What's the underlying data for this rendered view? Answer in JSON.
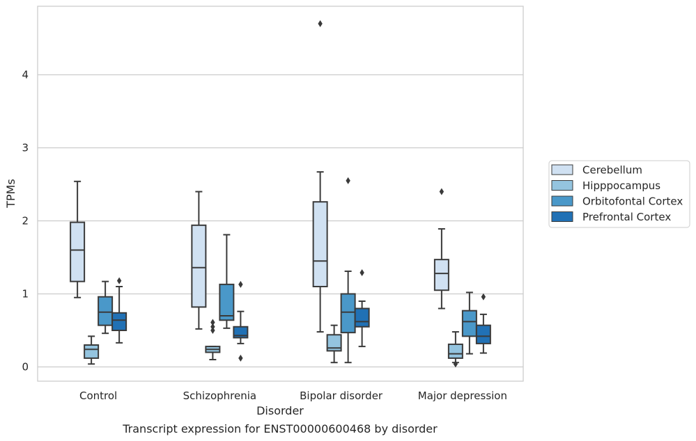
{
  "caption": "Transcript expression for ENST00000600468 by disorder",
  "chart_data": {
    "type": "box",
    "xlabel": "Disorder",
    "ylabel": "TPMs",
    "ylim": [
      -0.2,
      4.95
    ],
    "yticks": [
      0,
      1,
      2,
      3,
      4
    ],
    "grid": "horizontal",
    "legend_position": "right",
    "categories": [
      "Control",
      "Schizophrenia",
      "Bipolar disorder",
      "Major depression"
    ],
    "series": [
      {
        "name": "Cerebellum",
        "color": "#d0e1f2",
        "boxes": [
          {
            "whisker_low": 0.95,
            "q1": 1.17,
            "median": 1.6,
            "q3": 1.98,
            "whisker_high": 2.54,
            "outliers": []
          },
          {
            "whisker_low": 0.52,
            "q1": 0.82,
            "median": 1.36,
            "q3": 1.94,
            "whisker_high": 2.4,
            "outliers": []
          },
          {
            "whisker_low": 0.48,
            "q1": 1.1,
            "median": 1.45,
            "q3": 2.26,
            "whisker_high": 2.67,
            "outliers": [
              4.7
            ]
          },
          {
            "whisker_low": 0.8,
            "q1": 1.05,
            "median": 1.28,
            "q3": 1.47,
            "whisker_high": 1.89,
            "outliers": [
              2.4
            ]
          }
        ]
      },
      {
        "name": "Hipppocampus",
        "color": "#94c4df",
        "boxes": [
          {
            "whisker_low": 0.04,
            "q1": 0.12,
            "median": 0.24,
            "q3": 0.3,
            "whisker_high": 0.42,
            "outliers": []
          },
          {
            "whisker_low": 0.1,
            "q1": 0.2,
            "median": 0.24,
            "q3": 0.28,
            "whisker_high": 0.28,
            "outliers": [
              0.5,
              0.55,
              0.61
            ]
          },
          {
            "whisker_low": 0.06,
            "q1": 0.22,
            "median": 0.26,
            "q3": 0.44,
            "whisker_high": 0.57,
            "outliers": []
          },
          {
            "whisker_low": 0.06,
            "q1": 0.12,
            "median": 0.18,
            "q3": 0.31,
            "whisker_high": 0.48,
            "outliers": [
              0.04
            ]
          }
        ]
      },
      {
        "name": "Orbitofontal Cortex",
        "color": "#4a98c9",
        "boxes": [
          {
            "whisker_low": 0.46,
            "q1": 0.57,
            "median": 0.75,
            "q3": 0.96,
            "whisker_high": 1.17,
            "outliers": []
          },
          {
            "whisker_low": 0.53,
            "q1": 0.64,
            "median": 0.7,
            "q3": 1.13,
            "whisker_high": 1.81,
            "outliers": []
          },
          {
            "whisker_low": 0.06,
            "q1": 0.47,
            "median": 0.75,
            "q3": 1.0,
            "whisker_high": 1.31,
            "outliers": [
              2.55
            ]
          },
          {
            "whisker_low": 0.18,
            "q1": 0.42,
            "median": 0.62,
            "q3": 0.77,
            "whisker_high": 1.02,
            "outliers": []
          }
        ]
      },
      {
        "name": "Prefrontal Cortex",
        "color": "#2171b5",
        "boxes": [
          {
            "whisker_low": 0.33,
            "q1": 0.5,
            "median": 0.64,
            "q3": 0.74,
            "whisker_high": 1.1,
            "outliers": [
              1.18
            ]
          },
          {
            "whisker_low": 0.32,
            "q1": 0.4,
            "median": 0.43,
            "q3": 0.55,
            "whisker_high": 0.76,
            "outliers": [
              1.13,
              0.12
            ]
          },
          {
            "whisker_low": 0.28,
            "q1": 0.55,
            "median": 0.62,
            "q3": 0.8,
            "whisker_high": 0.9,
            "outliers": [
              1.29
            ]
          },
          {
            "whisker_low": 0.19,
            "q1": 0.32,
            "median": 0.42,
            "q3": 0.57,
            "whisker_high": 0.72,
            "outliers": [
              0.96
            ]
          }
        ]
      }
    ]
  }
}
